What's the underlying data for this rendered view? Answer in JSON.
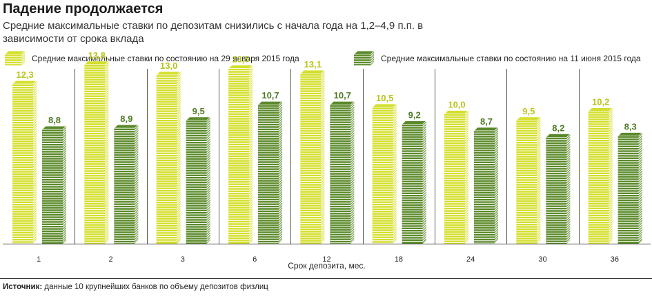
{
  "title": "Падение продолжается",
  "subtitle": "Средние максимальные ставки по депозитам снизились с начала года на 1,2–4,9 п.п. в зависимости от срока вклада",
  "legend": [
    {
      "label": "Средние максимальные ставки по состоянию на 29 января 2015 года",
      "color": "#d4df2c"
    },
    {
      "label": "Средние максимальные ставки по состоянию на 11 июня 2015 года",
      "color": "#5b8a2a"
    }
  ],
  "source": {
    "prefix": "Источник:",
    "text": " данные 10 крупнейших банков по объему депозитов физлиц"
  },
  "chart_data": {
    "type": "bar",
    "categories": [
      "1",
      "2",
      "3",
      "6",
      "12",
      "18",
      "24",
      "30",
      "36"
    ],
    "series": [
      {
        "name": "Средние максимальные ставки по состоянию на 29 января 2015 года",
        "values": [
          "12,3",
          "13,8",
          "13,0",
          "13,5",
          "13,1",
          "10,5",
          "10,0",
          "9,5",
          "10,2"
        ],
        "color": "#d4df2c",
        "label_color": "#b9c41a"
      },
      {
        "name": "Средние максимальные ставки по состоянию на 11 июня 2015 года",
        "values": [
          "8,8",
          "8,9",
          "9,5",
          "10,7",
          "10,7",
          "9,2",
          "8,7",
          "8,2",
          "8,3"
        ],
        "color": "#5b8a2a",
        "label_color": "#4f7a26"
      }
    ],
    "xlabel": "Срок депозита, мес.",
    "ylabel": "",
    "ylim": [
      0,
      14
    ]
  }
}
